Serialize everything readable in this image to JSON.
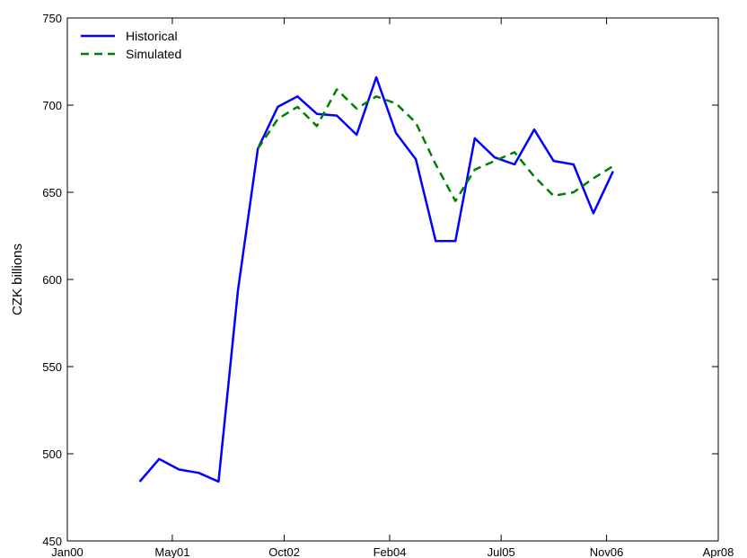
{
  "chart_data": {
    "type": "line",
    "title": "",
    "xlabel": "",
    "ylabel": "CZK billions",
    "xlim": [
      "2000-01-01",
      "2008-04-01"
    ],
    "ylim": [
      450,
      750
    ],
    "xticks": [
      {
        "date": "2000-01-01",
        "label": "Jan00"
      },
      {
        "date": "2001-05-01",
        "label": "May01"
      },
      {
        "date": "2002-10-01",
        "label": "Oct02"
      },
      {
        "date": "2004-02-01",
        "label": "Feb04"
      },
      {
        "date": "2005-07-01",
        "label": "Jul05"
      },
      {
        "date": "2006-11-01",
        "label": "Nov06"
      },
      {
        "date": "2008-04-01",
        "label": "Apr08"
      }
    ],
    "yticks": [
      450,
      500,
      550,
      600,
      650,
      700,
      750
    ],
    "grid": false,
    "legend": "top-left",
    "series": [
      {
        "name": "Historical",
        "color": "#0000ff",
        "dash": "solid",
        "points": [
          {
            "x": "2000-12-01",
            "y": 484
          },
          {
            "x": "2001-03-01",
            "y": 497
          },
          {
            "x": "2001-06-01",
            "y": 491
          },
          {
            "x": "2001-09-01",
            "y": 489
          },
          {
            "x": "2001-12-01",
            "y": 484
          },
          {
            "x": "2002-03-01",
            "y": 594
          },
          {
            "x": "2002-06-01",
            "y": 675
          },
          {
            "x": "2002-09-01",
            "y": 699
          },
          {
            "x": "2002-12-01",
            "y": 705
          },
          {
            "x": "2003-03-01",
            "y": 695
          },
          {
            "x": "2003-06-01",
            "y": 694
          },
          {
            "x": "2003-09-01",
            "y": 683
          },
          {
            "x": "2003-12-01",
            "y": 716
          },
          {
            "x": "2004-03-01",
            "y": 684
          },
          {
            "x": "2004-06-01",
            "y": 669
          },
          {
            "x": "2004-09-01",
            "y": 622
          },
          {
            "x": "2004-12-01",
            "y": 622
          },
          {
            "x": "2005-03-01",
            "y": 681
          },
          {
            "x": "2005-06-01",
            "y": 670
          },
          {
            "x": "2005-09-01",
            "y": 666
          },
          {
            "x": "2005-12-01",
            "y": 686
          },
          {
            "x": "2006-03-01",
            "y": 668
          },
          {
            "x": "2006-06-01",
            "y": 666
          },
          {
            "x": "2006-09-01",
            "y": 638
          },
          {
            "x": "2006-12-01",
            "y": 662
          }
        ]
      },
      {
        "name": "Simulated",
        "color": "#008000",
        "dash": "dashed",
        "points": [
          {
            "x": "2002-06-01",
            "y": 675
          },
          {
            "x": "2002-09-01",
            "y": 692
          },
          {
            "x": "2002-12-01",
            "y": 699
          },
          {
            "x": "2003-03-01",
            "y": 688
          },
          {
            "x": "2003-06-01",
            "y": 709
          },
          {
            "x": "2003-09-01",
            "y": 698
          },
          {
            "x": "2003-12-01",
            "y": 705
          },
          {
            "x": "2004-03-01",
            "y": 701
          },
          {
            "x": "2004-06-01",
            "y": 690
          },
          {
            "x": "2004-09-01",
            "y": 666
          },
          {
            "x": "2004-12-01",
            "y": 645
          },
          {
            "x": "2005-03-01",
            "y": 663
          },
          {
            "x": "2005-06-01",
            "y": 668
          },
          {
            "x": "2005-09-01",
            "y": 673
          },
          {
            "x": "2005-12-01",
            "y": 659
          },
          {
            "x": "2006-03-01",
            "y": 648
          },
          {
            "x": "2006-06-01",
            "y": 650
          },
          {
            "x": "2006-09-01",
            "y": 658
          },
          {
            "x": "2006-12-01",
            "y": 665
          }
        ]
      }
    ]
  }
}
